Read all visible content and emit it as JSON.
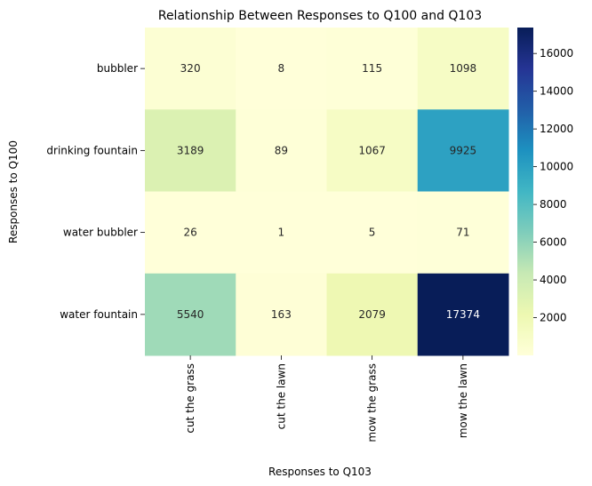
{
  "chart_data": {
    "type": "heatmap",
    "title": "Relationship Between Responses to Q100 and Q103",
    "xlabel": "Responses to Q103",
    "ylabel": "Responses to Q100",
    "x_categories": [
      "cut the grass",
      "cut the lawn",
      "mow the grass",
      "mow the lawn"
    ],
    "y_categories": [
      "bubbler",
      "drinking fountain",
      "water bubbler",
      "water fountain"
    ],
    "values": [
      [
        320,
        8,
        115,
        1098
      ],
      [
        3189,
        89,
        1067,
        9925
      ],
      [
        26,
        1,
        5,
        71
      ],
      [
        5540,
        163,
        2079,
        17374
      ]
    ],
    "colormap": "YlGnBu",
    "vmin": 1,
    "vmax": 17374,
    "colorbar_ticks": [
      2000,
      4000,
      6000,
      8000,
      10000,
      12000,
      14000,
      16000
    ],
    "grid": false
  }
}
